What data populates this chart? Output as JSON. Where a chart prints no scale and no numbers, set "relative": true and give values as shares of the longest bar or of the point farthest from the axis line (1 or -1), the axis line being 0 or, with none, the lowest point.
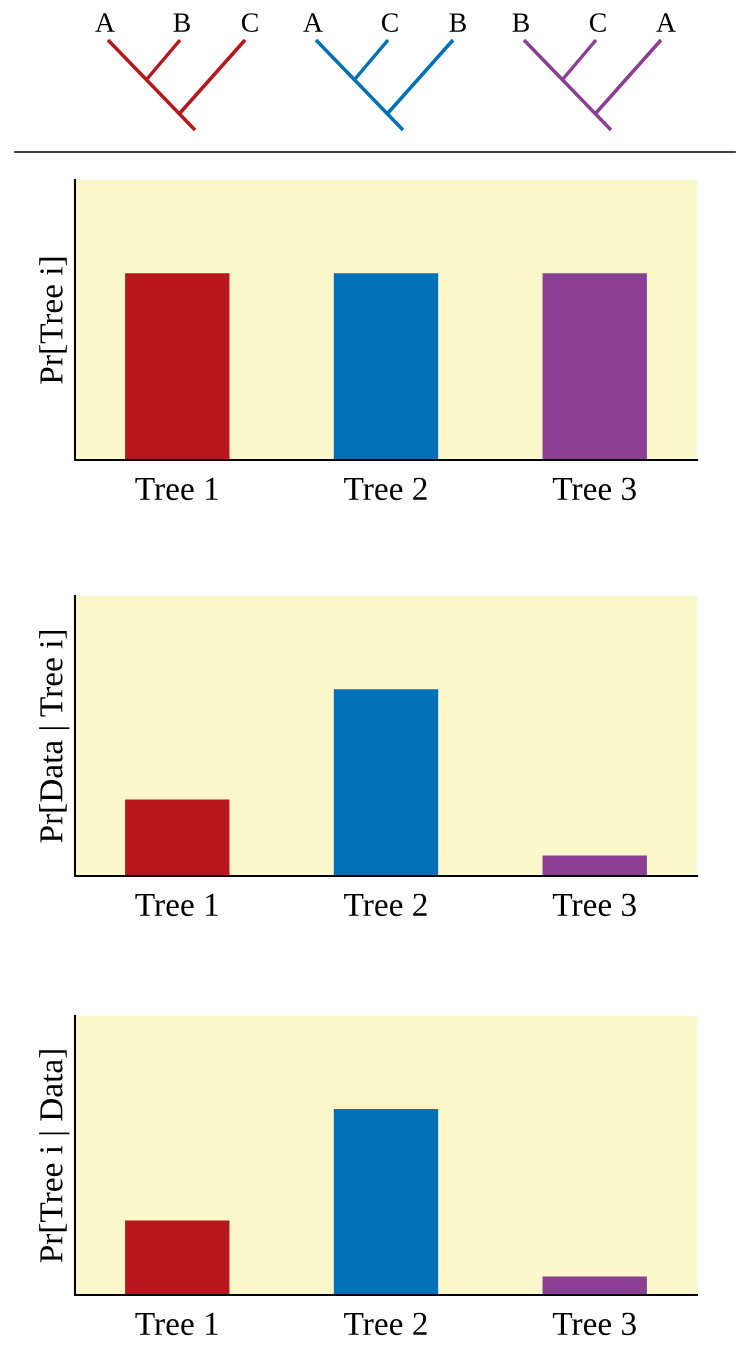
{
  "chart_data": [
    {
      "type": "other",
      "annotations": [
        "A",
        "B",
        "C",
        "A",
        "C",
        "B",
        "B",
        "C",
        "A"
      ],
      "colors": [
        "#b8161d",
        "#0070b8",
        "#8b3f93"
      ]
    },
    {
      "type": "bar",
      "relative": true,
      "ylabel": "Pr[Tree i]",
      "categories": [
        "Tree 1",
        "Tree 2",
        "Tree 3"
      ],
      "values": [
        1,
        1,
        1
      ],
      "colors": [
        "#b8161d",
        "#0070b8",
        "#8b3f93"
      ],
      "grid": false,
      "legend": false
    },
    {
      "type": "bar",
      "relative": true,
      "ylabel": "Pr[Data | Tree i]",
      "categories": [
        "Tree 1",
        "Tree 2",
        "Tree 3"
      ],
      "values": [
        0.41,
        1,
        0.11
      ],
      "colors": [
        "#b8161d",
        "#0070b8",
        "#8b3f93"
      ],
      "grid": false,
      "legend": false
    },
    {
      "type": "bar",
      "relative": true,
      "ylabel": "Pr[Tree i | Data]",
      "categories": [
        "Tree 1",
        "Tree 2",
        "Tree 3"
      ],
      "values": [
        0.4,
        1,
        0.1
      ],
      "colors": [
        "#b8161d",
        "#0070b8",
        "#8b3f93"
      ],
      "grid": false,
      "legend": false
    }
  ]
}
